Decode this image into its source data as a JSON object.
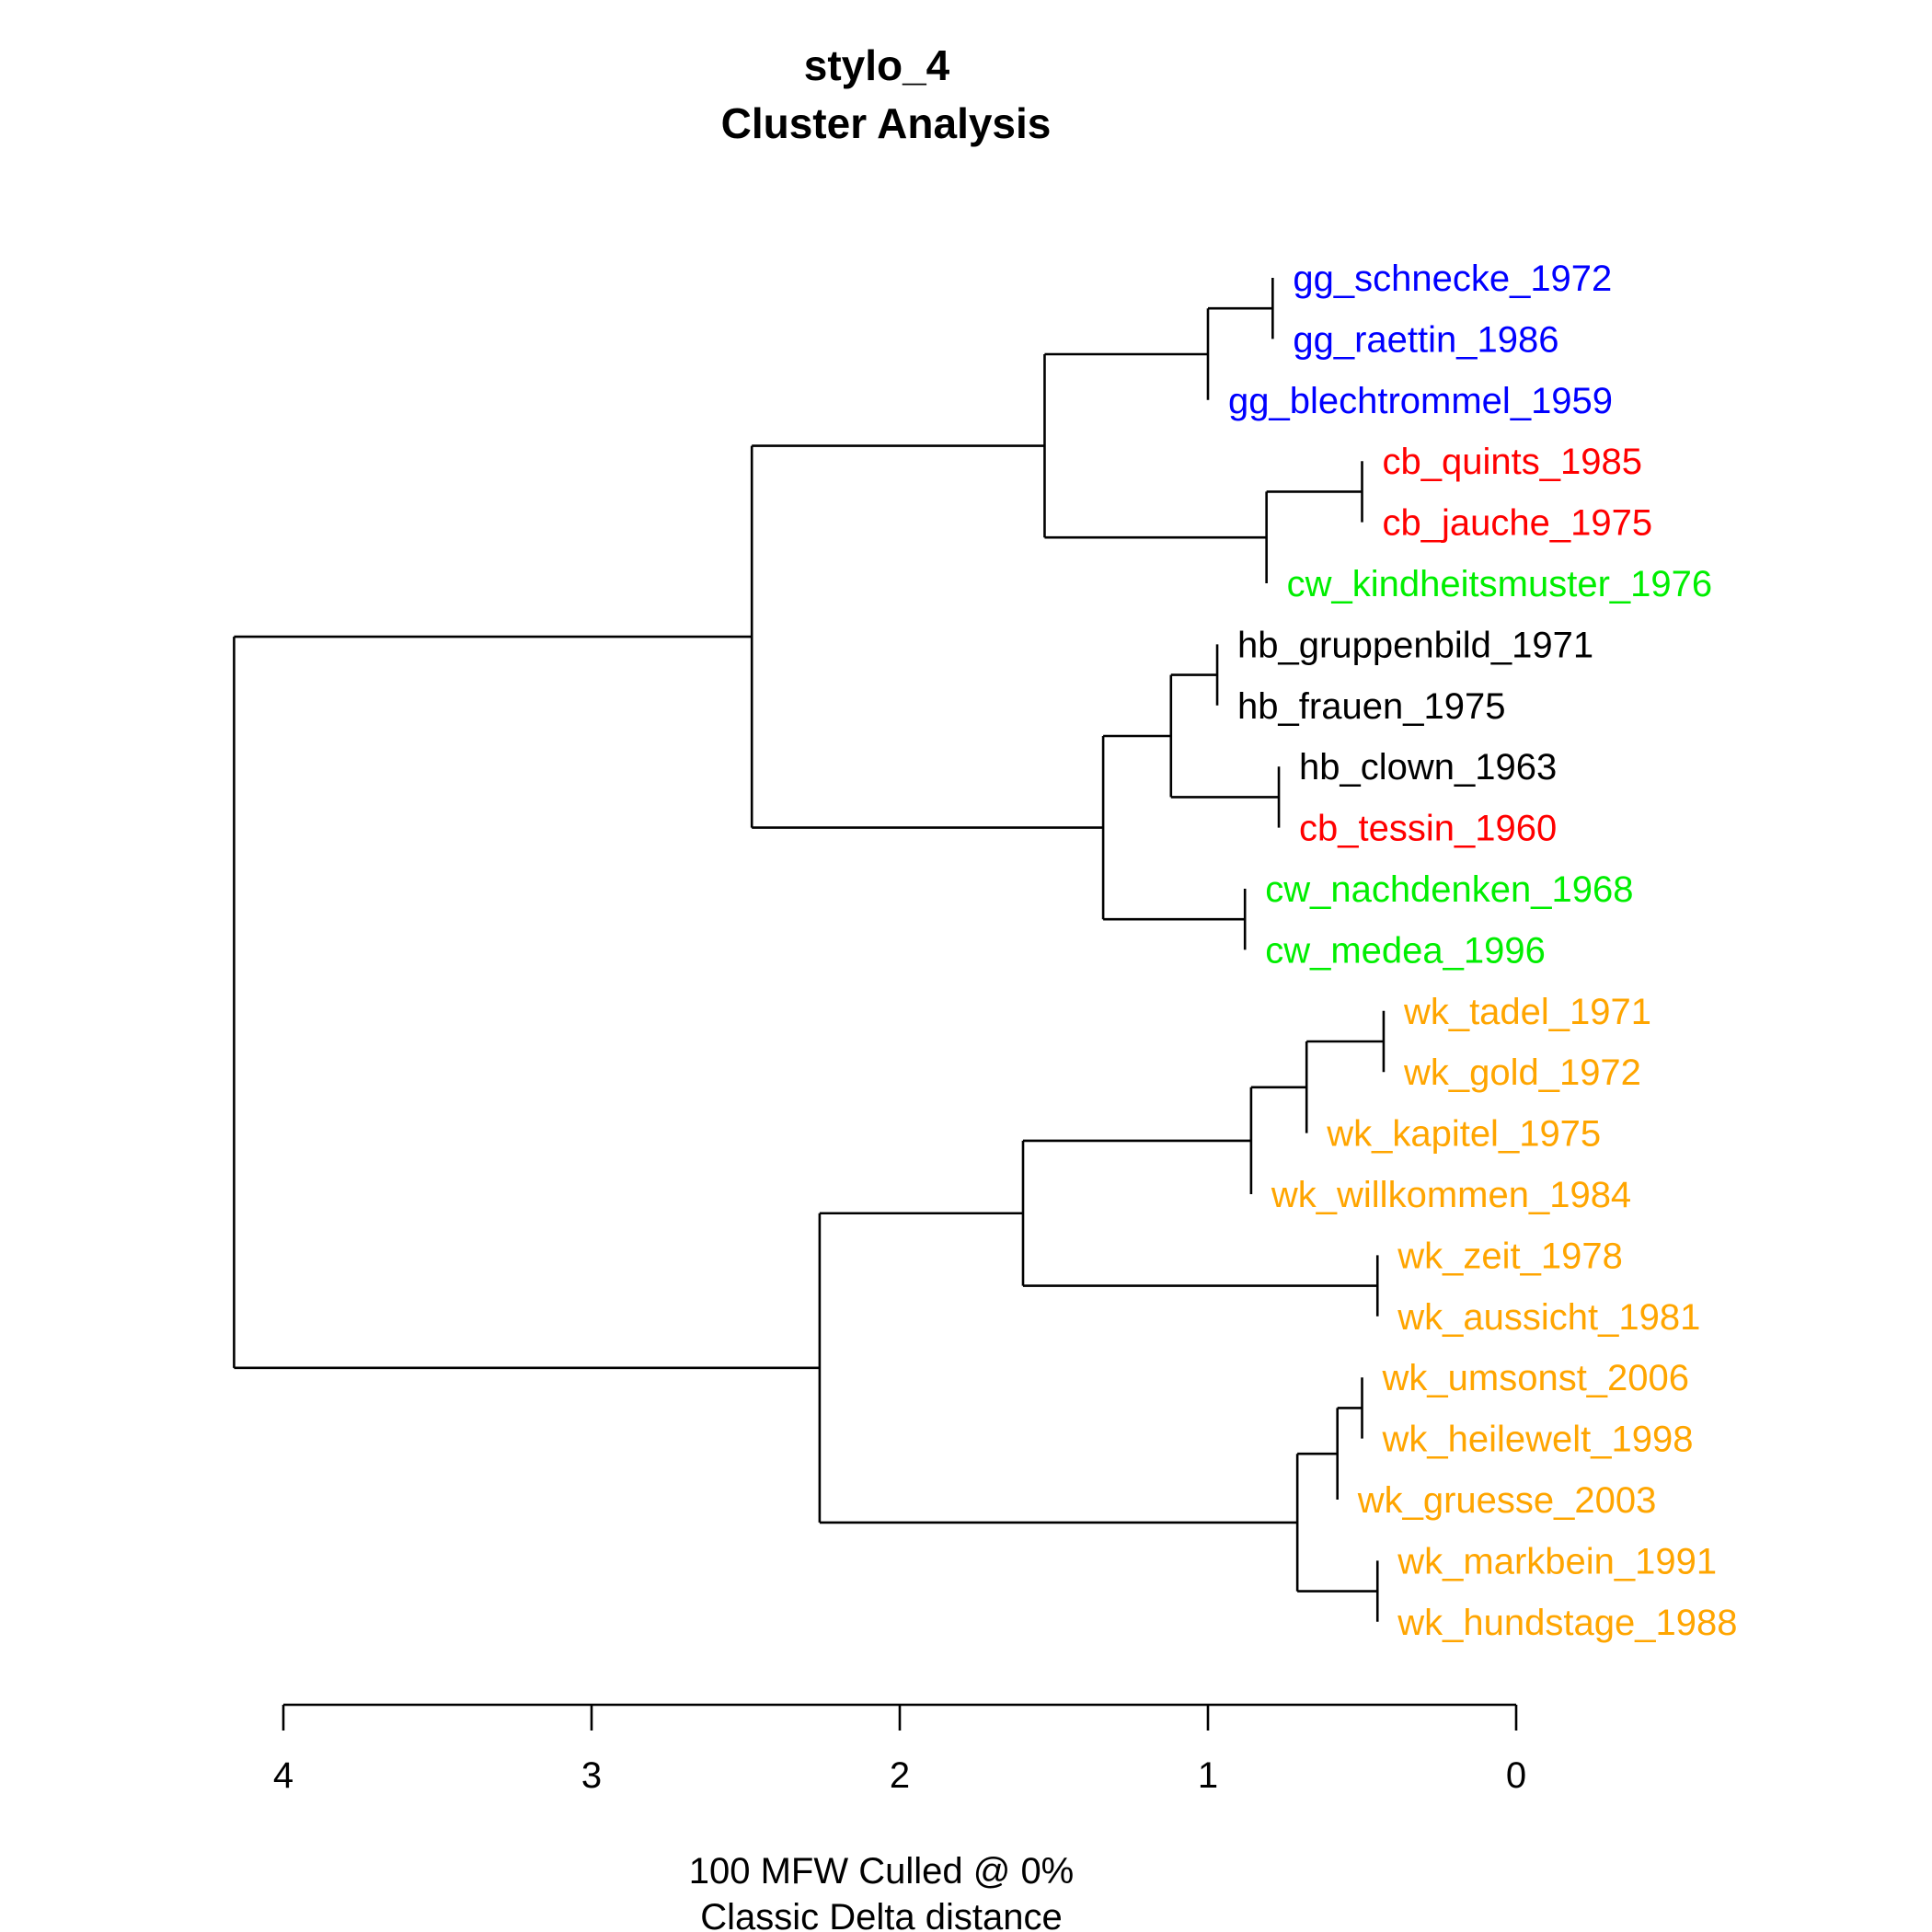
{
  "chart_data": {
    "type": "dendrogram",
    "title": [
      "stylo_4",
      "Cluster Analysis"
    ],
    "xlabel": [
      "100 MFW  Culled @ 0%",
      "Classic Delta distance"
    ],
    "axis": {
      "orientation": "reversed",
      "range": [
        4.2,
        0
      ],
      "ticks": [
        4,
        3,
        2,
        1,
        0
      ]
    },
    "colors": {
      "gg": "#0000ff",
      "cb": "#ff0000",
      "cw": "#00ee00",
      "hb": "#000000",
      "wk": "#ffa500"
    },
    "leaves": [
      {
        "label": "gg_schnecke_1972",
        "group": "gg"
      },
      {
        "label": "gg_raettin_1986",
        "group": "gg"
      },
      {
        "label": "gg_blechtrommel_1959",
        "group": "gg"
      },
      {
        "label": "cb_quints_1985",
        "group": "cb"
      },
      {
        "label": "cb_jauche_1975",
        "group": "cb"
      },
      {
        "label": "cw_kindheitsmuster_1976",
        "group": "cw"
      },
      {
        "label": "hb_gruppenbild_1971",
        "group": "hb"
      },
      {
        "label": "hb_frauen_1975",
        "group": "hb"
      },
      {
        "label": "hb_clown_1963",
        "group": "hb"
      },
      {
        "label": "cb_tessin_1960",
        "group": "cb"
      },
      {
        "label": "cw_nachdenken_1968",
        "group": "cw"
      },
      {
        "label": "cw_medea_1996",
        "group": "cw"
      },
      {
        "label": "wk_tadel_1971",
        "group": "wk"
      },
      {
        "label": "wk_gold_1972",
        "group": "wk"
      },
      {
        "label": "wk_kapitel_1975",
        "group": "wk"
      },
      {
        "label": "wk_willkommen_1984",
        "group": "wk"
      },
      {
        "label": "wk_zeit_1978",
        "group": "wk"
      },
      {
        "label": "wk_aussicht_1981",
        "group": "wk"
      },
      {
        "label": "wk_umsonst_2006",
        "group": "wk"
      },
      {
        "label": "wk_heilewelt_1998",
        "group": "wk"
      },
      {
        "label": "wk_gruesse_2003",
        "group": "wk"
      },
      {
        "label": "wk_markbein_1991",
        "group": "wk"
      },
      {
        "label": "wk_hundstage_1988",
        "group": "wk"
      }
    ],
    "merges": [
      {
        "id": "m1",
        "children": [
          0,
          1
        ],
        "height": 0.79
      },
      {
        "id": "m2",
        "children": [
          "m1",
          2
        ],
        "height": 1.0
      },
      {
        "id": "m3",
        "children": [
          3,
          4
        ],
        "height": 0.5
      },
      {
        "id": "m4",
        "children": [
          "m3",
          5
        ],
        "height": 0.81
      },
      {
        "id": "m5",
        "children": [
          "m2",
          "m4"
        ],
        "height": 1.53
      },
      {
        "id": "m6",
        "children": [
          6,
          7
        ],
        "height": 0.97
      },
      {
        "id": "m7",
        "children": [
          8,
          9
        ],
        "height": 0.77
      },
      {
        "id": "m8",
        "children": [
          "m6",
          "m7"
        ],
        "height": 1.12
      },
      {
        "id": "m9",
        "children": [
          10,
          11
        ],
        "height": 0.88
      },
      {
        "id": "m10",
        "children": [
          "m8",
          "m9"
        ],
        "height": 1.34
      },
      {
        "id": "m11",
        "children": [
          "m5",
          "m10"
        ],
        "height": 2.48
      },
      {
        "id": "m12",
        "children": [
          12,
          13
        ],
        "height": 0.43
      },
      {
        "id": "m13",
        "children": [
          "m12",
          14
        ],
        "height": 0.68
      },
      {
        "id": "m14",
        "children": [
          "m13",
          15
        ],
        "height": 0.86
      },
      {
        "id": "m15",
        "children": [
          16,
          17
        ],
        "height": 0.45
      },
      {
        "id": "m16",
        "children": [
          "m14",
          "m15"
        ],
        "height": 1.6
      },
      {
        "id": "m17",
        "children": [
          18,
          19
        ],
        "height": 0.5
      },
      {
        "id": "m18",
        "children": [
          "m17",
          20
        ],
        "height": 0.58
      },
      {
        "id": "m19",
        "children": [
          21,
          22
        ],
        "height": 0.45
      },
      {
        "id": "m20",
        "children": [
          "m18",
          "m19"
        ],
        "height": 0.71
      },
      {
        "id": "m21",
        "children": [
          "m16",
          "m20"
        ],
        "height": 2.26
      },
      {
        "id": "m22",
        "children": [
          "m11",
          "m21"
        ],
        "height": 4.16
      }
    ]
  }
}
